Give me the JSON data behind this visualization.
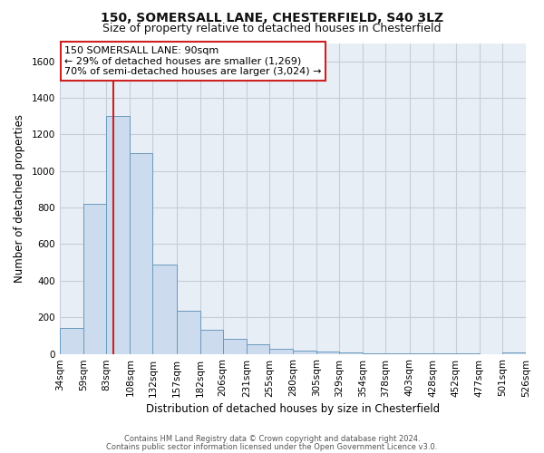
{
  "title": "150, SOMERSALL LANE, CHESTERFIELD, S40 3LZ",
  "subtitle": "Size of property relative to detached houses in Chesterfield",
  "xlabel": "Distribution of detached houses by size in Chesterfield",
  "ylabel": "Number of detached properties",
  "bar_color": "#ccdcee",
  "bar_edge_color": "#6a9abe",
  "figure_bg_color": "#ffffff",
  "plot_bg_color": "#e8eef6",
  "grid_color": "#c5cdd8",
  "red_line_color": "#cc2222",
  "annotation_box_facecolor": "#ffffff",
  "annotation_box_edgecolor": "#cc2222",
  "bin_edges": [
    34,
    59,
    83,
    108,
    132,
    157,
    182,
    206,
    231,
    255,
    280,
    305,
    329,
    354,
    378,
    403,
    428,
    452,
    477,
    501,
    526
  ],
  "bin_labels": [
    "34sqm",
    "59sqm",
    "83sqm",
    "108sqm",
    "132sqm",
    "157sqm",
    "182sqm",
    "206sqm",
    "231sqm",
    "255sqm",
    "280sqm",
    "305sqm",
    "329sqm",
    "354sqm",
    "378sqm",
    "403sqm",
    "428sqm",
    "452sqm",
    "477sqm",
    "501sqm",
    "526sqm"
  ],
  "bar_heights": [
    140,
    820,
    1300,
    1100,
    490,
    235,
    130,
    80,
    50,
    30,
    20,
    15,
    10,
    5,
    3,
    2,
    1,
    1,
    0,
    10
  ],
  "red_line_x": 90,
  "ylim": [
    0,
    1700
  ],
  "yticks": [
    0,
    200,
    400,
    600,
    800,
    1000,
    1200,
    1400,
    1600
  ],
  "annotation_title": "150 SOMERSALL LANE: 90sqm",
  "annotation_line1": "← 29% of detached houses are smaller (1,269)",
  "annotation_line2": "70% of semi-detached houses are larger (3,024) →",
  "title_fontsize": 10,
  "subtitle_fontsize": 9,
  "xlabel_fontsize": 8.5,
  "ylabel_fontsize": 8.5,
  "tick_fontsize": 7.5,
  "ann_fontsize": 8,
  "footer1": "Contains HM Land Registry data © Crown copyright and database right 2024.",
  "footer2": "Contains public sector information licensed under the Open Government Licence v3.0."
}
